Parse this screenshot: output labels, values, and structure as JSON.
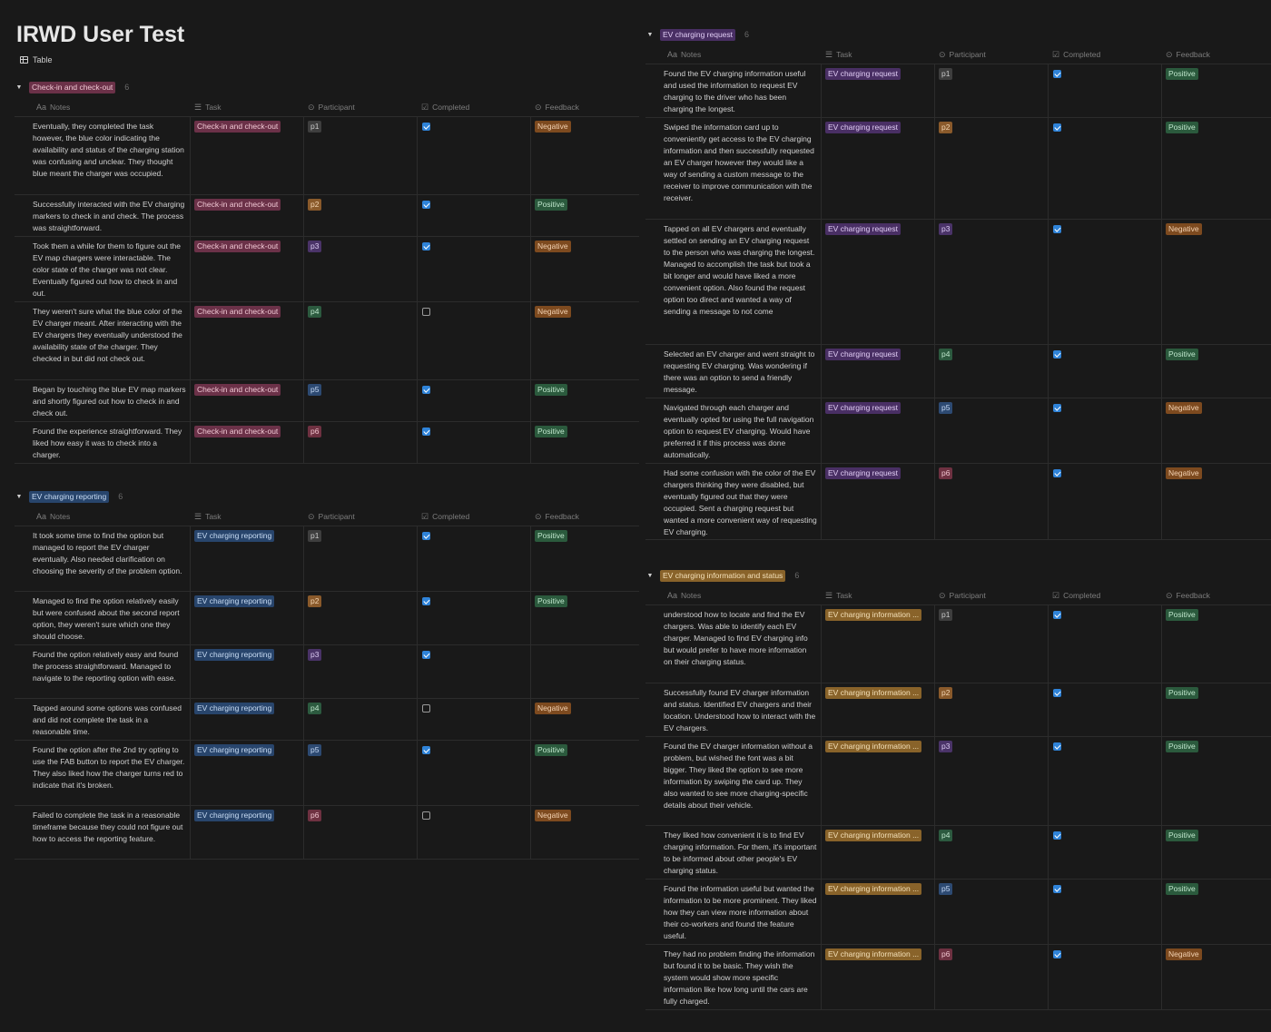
{
  "page": {
    "title": "IRWD User Test",
    "view_tab": "Table"
  },
  "columns": {
    "notes": "Notes",
    "task": "Task",
    "participant": "Participant",
    "completed": "Completed",
    "feedback": "Feedback"
  },
  "colors": {
    "tag_pink": "#6b3148",
    "tag_blue": "#28456c",
    "tag_purple": "#492f64",
    "tag_orange": "#89632a",
    "p_gray": "#3e3e3e",
    "p_brown": "#8a5a2b",
    "p_purple": "#4a3368",
    "p_green": "#2c5a3f",
    "p_blue": "#2d4a72",
    "p_red": "#6e3141",
    "fb_neg": "#7d4a1f",
    "fb_pos": "#2b5a3d",
    "check_blue": "#2f83d8"
  },
  "groups": [
    {
      "label": "Check-in and check-out",
      "count": "6",
      "tag_color": "#6b3148",
      "tag_text": "#f0c8d4",
      "rows": [
        {
          "notes": "Eventually, they completed the task however, the blue color indicating the availability and status of the charging station was confusing and unclear. They thought blue meant the charger was occupied.",
          "task": "Check-in and check-out",
          "participant": "p1",
          "completed": true,
          "feedback": "Negative"
        },
        {
          "notes": "Successfully interacted with the EV charging markers to check in and check. The process was straightforward.",
          "task": "Check-in and check-out",
          "participant": "p2",
          "completed": true,
          "feedback": "Positive"
        },
        {
          "notes": "Took them a while for them to figure out the EV map chargers were interactable. The color state of the charger was not clear. Eventually figured out how to check in and out.",
          "task": "Check-in and check-out",
          "participant": "p3",
          "completed": true,
          "feedback": "Negative"
        },
        {
          "notes": "They weren't sure what the blue color of the EV charger meant. After interacting with the EV chargers they eventually understood the availability state of the charger. They checked in but did not check out.",
          "task": "Check-in and check-out",
          "participant": "p4",
          "completed": false,
          "feedback": "Negative"
        },
        {
          "notes": "Began by touching the blue EV map markers and shortly figured out how to check in and check out.",
          "task": "Check-in and check-out",
          "participant": "p5",
          "completed": true,
          "feedback": "Positive"
        },
        {
          "notes": "Found the experience straightforward. They liked how easy it was to check into a charger.",
          "task": "Check-in and check-out",
          "participant": "p6",
          "completed": true,
          "feedback": "Positive"
        }
      ]
    },
    {
      "label": "EV charging reporting",
      "count": "6",
      "tag_color": "#28456c",
      "tag_text": "#c8dcf4",
      "rows": [
        {
          "notes": "It took some time to find the option but managed to report the EV charger eventually. Also needed clarification on choosing the severity of the problem option.",
          "task": "EV charging reporting",
          "participant": "p1",
          "completed": true,
          "feedback": "Positive"
        },
        {
          "notes": "Managed to find the option relatively easily but were confused about the second report option, they weren't sure which one they should choose.",
          "task": "EV charging reporting",
          "participant": "p2",
          "completed": true,
          "feedback": "Positive"
        },
        {
          "notes": "Found the option relatively easy and found the process straightforward. Managed to navigate to the reporting option with ease.",
          "task": "EV charging reporting",
          "participant": "p3",
          "completed": true,
          "feedback": ""
        },
        {
          "notes": "Tapped around some options was confused and did not complete the task in a reasonable time.",
          "task": "EV charging reporting",
          "participant": "p4",
          "completed": false,
          "feedback": "Negative"
        },
        {
          "notes": "Found the option after the 2nd try opting to use the FAB button to report the EV charger. They also liked how the charger turns red to indicate that it's broken.",
          "task": "EV charging reporting",
          "participant": "p5",
          "completed": true,
          "feedback": "Positive"
        },
        {
          "notes": "Failed to complete the task in a reasonable timeframe because they could not figure out how to access the reporting feature.",
          "task": "EV charging reporting",
          "participant": "p6",
          "completed": false,
          "feedback": "Negative"
        }
      ]
    },
    {
      "label": "EV charging request",
      "count": "6",
      "tag_color": "#492f64",
      "tag_text": "#e0ccf4",
      "rows": [
        {
          "notes": "Found the EV charging information useful and used the information to request EV charging to the driver who has been charging the longest.",
          "task": "EV charging request",
          "participant": "p1",
          "completed": true,
          "feedback": "Positive"
        },
        {
          "notes": "Swiped the information card up to conveniently get access to the EV charging information and then successfully requested an EV charger however they would like a way of sending a custom message to the receiver to improve communication with the receiver.",
          "task": "EV charging request",
          "participant": "p2",
          "completed": true,
          "feedback": "Positive"
        },
        {
          "notes": "Tapped on all EV chargers and eventually settled on sending an EV charging request to the person who was charging the longest. Managed to accomplish the task but took a bit longer and would have liked a more convenient option. Also found the request option too direct and wanted a way of sending a message to not come",
          "task": "EV charging request",
          "participant": "p3",
          "completed": true,
          "feedback": "Negative"
        },
        {
          "notes": "Selected an EV charger and went straight to requesting EV charging. Was wondering if there was an option to send a friendly message.",
          "task": "EV charging request",
          "participant": "p4",
          "completed": true,
          "feedback": "Positive"
        },
        {
          "notes": "Navigated through each charger and eventually opted for using the full navigation option to request EV charging. Would have preferred it if this process was done automatically.",
          "task": "EV charging request",
          "participant": "p5",
          "completed": true,
          "feedback": "Negative"
        },
        {
          "notes": "Had some confusion with the color of the EV chargers thinking they were disabled, but eventually figured out that they were occupied. Sent a charging request but wanted a more convenient way of requesting EV charging.",
          "task": "EV charging request",
          "participant": "p6",
          "completed": true,
          "feedback": "Negative"
        }
      ]
    },
    {
      "label": "EV charging information and status",
      "count": "6",
      "tag_color": "#89632a",
      "tag_text": "#f4e0b8",
      "rows": [
        {
          "notes": "understood how to locate and find the EV chargers. Was able to identify each EV charger. Managed to find EV charging info but would prefer to have more information on their charging status.",
          "task": "EV charging information ...",
          "participant": "p1",
          "completed": true,
          "feedback": "Positive"
        },
        {
          "notes": "Successfully found EV charger information and status. Identified EV chargers and their location. Understood how to interact with the EV chargers.",
          "task": "EV charging information ...",
          "participant": "p2",
          "completed": true,
          "feedback": "Positive"
        },
        {
          "notes": "Found the EV charger information without a problem, but wished the font was a bit bigger. They liked the option to see more information by swiping the card up. They also wanted to see more charging-specific details about their vehicle.",
          "task": "EV charging information ...",
          "participant": "p3",
          "completed": true,
          "feedback": "Positive"
        },
        {
          "notes": "They liked how convenient it is to find EV charging information. For them, it's important to be informed about other people's EV charging status.",
          "task": "EV charging information ...",
          "participant": "p4",
          "completed": true,
          "feedback": "Positive"
        },
        {
          "notes": "Found the information useful but wanted the information to be more prominent. They liked how they can view more information about their co-workers and found the feature useful.",
          "task": "EV charging information ...",
          "participant": "p5",
          "completed": true,
          "feedback": "Positive"
        },
        {
          "notes": "They had no problem finding the information but found it to be basic. They wish the system would show more specific information like how long until the cars are fully charged.",
          "task": "EV charging information ...",
          "participant": "p6",
          "completed": true,
          "feedback": "Negative"
        }
      ]
    }
  ]
}
